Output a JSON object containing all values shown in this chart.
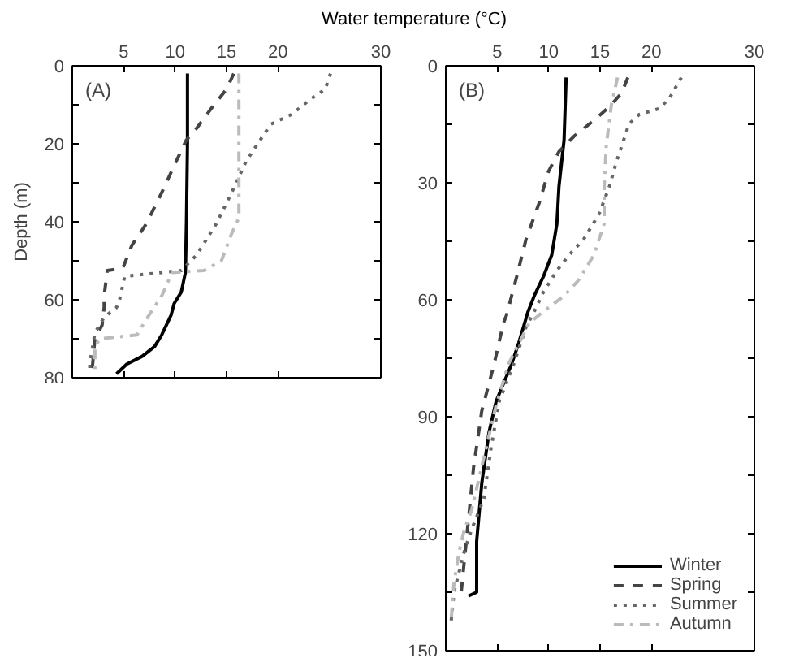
{
  "chart_data": [
    {
      "type": "line",
      "xlabel": "Water temperature (°C)",
      "ylabel": "Depth (m)",
      "annotations": [
        "(A)"
      ],
      "xlim": [
        0,
        30
      ],
      "xticks": [
        5,
        10,
        15,
        20,
        30
      ],
      "ylim": [
        80,
        0
      ],
      "yticks": [
        0,
        {
          "value": 10,
          "label": null
        },
        20,
        {
          "value": 30,
          "label": null
        },
        40,
        {
          "value": 50,
          "label": null
        },
        60,
        {
          "value": 70,
          "label": null
        },
        80
      ],
      "grid": false,
      "legend": false,
      "series": [
        {
          "color": "#000000",
          "line_style": "solid",
          "x": [
            11.2,
            11.2,
            11.1,
            11.0,
            10.6,
            9.9,
            9.6,
            8.7,
            8.0,
            6.8,
            5.3,
            4.3
          ],
          "values": [
            2,
            20,
            40,
            53,
            58,
            61,
            64,
            69,
            72,
            74.5,
            76.5,
            79
          ]
        },
        {
          "color": "#444444",
          "line_style": "dashed",
          "x": [
            15.7,
            15.0,
            13.5,
            12.1,
            11.1,
            10.1,
            8.7,
            7.2,
            5.8,
            4.9,
            3.4,
            3.1,
            3.1,
            2.9,
            2.2,
            1.9
          ],
          "values": [
            2,
            6,
            11,
            16,
            19,
            24.5,
            32.5,
            40.5,
            46,
            52,
            52.5,
            59,
            62,
            66.5,
            70,
            79
          ]
        },
        {
          "color": "#666666",
          "line_style": "dotted",
          "x": [
            25.1,
            24.6,
            23.2,
            21.3,
            19.3,
            17.9,
            16.9,
            15.5,
            14.0,
            12.1,
            10.6,
            5.1,
            4.6,
            4.3,
            3.1,
            2.2,
            1.7,
            1.7
          ],
          "values": [
            2,
            6,
            8.5,
            12.5,
            15,
            20.5,
            24.5,
            32.5,
            40.5,
            48.5,
            52.5,
            54,
            60,
            62,
            64.5,
            68.5,
            76.5,
            79
          ]
        },
        {
          "color": "#bbbbbb",
          "line_style": "dashdot",
          "x": [
            16.2,
            16.2,
            15.5,
            14.5,
            12.8,
            9.7,
            8.7,
            7.2,
            6.3,
            2.7,
            2.2,
            2.2
          ],
          "values": [
            2,
            39,
            43,
            50,
            52.5,
            53,
            59,
            65,
            69,
            70,
            72,
            79
          ]
        }
      ]
    },
    {
      "type": "line",
      "annotations": [
        "(B)"
      ],
      "xlim": [
        0,
        30
      ],
      "xticks": [
        5,
        10,
        15,
        20,
        30
      ],
      "ylim": [
        150,
        0
      ],
      "yticks": [
        0,
        {
          "value": 15,
          "label": null
        },
        30,
        {
          "value": 45,
          "label": null
        },
        60,
        {
          "value": 75,
          "label": null
        },
        90,
        {
          "value": 105,
          "label": null
        },
        120,
        {
          "value": 135,
          "label": null
        },
        150
      ],
      "grid": false,
      "legend": "bottom right",
      "series": [
        {
          "name": "Winter",
          "color": "#000000",
          "line_style": "solid",
          "x": [
            11.7,
            11.5,
            11.0,
            10.8,
            10.3,
            9.5,
            8.6,
            8.0,
            7.1,
            6.4,
            4.9,
            4.2,
            3.5,
            3.0,
            3.0,
            2.2
          ],
          "values": [
            3,
            19,
            31,
            40.5,
            48.5,
            54,
            59,
            63,
            71,
            76.5,
            86,
            94,
            107,
            122,
            135,
            136
          ]
        },
        {
          "name": "Spring",
          "color": "#444444",
          "line_style": "dashed",
          "x": [
            17.7,
            17.1,
            15.9,
            14.4,
            12.5,
            11.0,
            10.0,
            9.1,
            7.8,
            6.9,
            5.9,
            5.6,
            4.7,
            3.5,
            2.7,
            2.2,
            1.8,
            1.5
          ],
          "values": [
            3,
            7,
            10.5,
            14,
            18,
            22,
            27,
            35,
            44.5,
            54,
            64,
            66,
            76.5,
            88.5,
            103,
            116.5,
            127,
            135
          ]
        },
        {
          "name": "Summer",
          "color": "#666666",
          "line_style": "dotted",
          "x": [
            22.9,
            21.7,
            20.7,
            18.8,
            17.8,
            17.3,
            16.6,
            15.9,
            14.9,
            13.4,
            12.0,
            10.8,
            9.5,
            8.6,
            7.8,
            6.6,
            5.2,
            4.4,
            3.7,
            2.5,
            1.8,
            0.8,
            0.5
          ],
          "values": [
            3,
            8.5,
            11,
            12.5,
            15,
            19,
            24.5,
            31,
            38,
            44.5,
            48.5,
            52.5,
            58,
            63,
            67,
            76.5,
            86,
            98,
            111,
            119,
            124.5,
            135,
            143
          ]
        },
        {
          "name": "Autumn",
          "color": "#bbbbbb",
          "line_style": "dashdot",
          "x": [
            16.7,
            16.1,
            15.6,
            15.4,
            15.4,
            14.4,
            12.9,
            11.5,
            9.5,
            8.1,
            6.1,
            4.9,
            3.7,
            2.5,
            1.8,
            1.3,
            0.8,
            0.5
          ],
          "values": [
            3,
            10,
            20.5,
            31,
            40.5,
            48.5,
            55,
            59,
            63,
            66,
            76.5,
            87,
            100.5,
            114,
            119,
            124.5,
            132.5,
            143
          ]
        }
      ]
    }
  ]
}
